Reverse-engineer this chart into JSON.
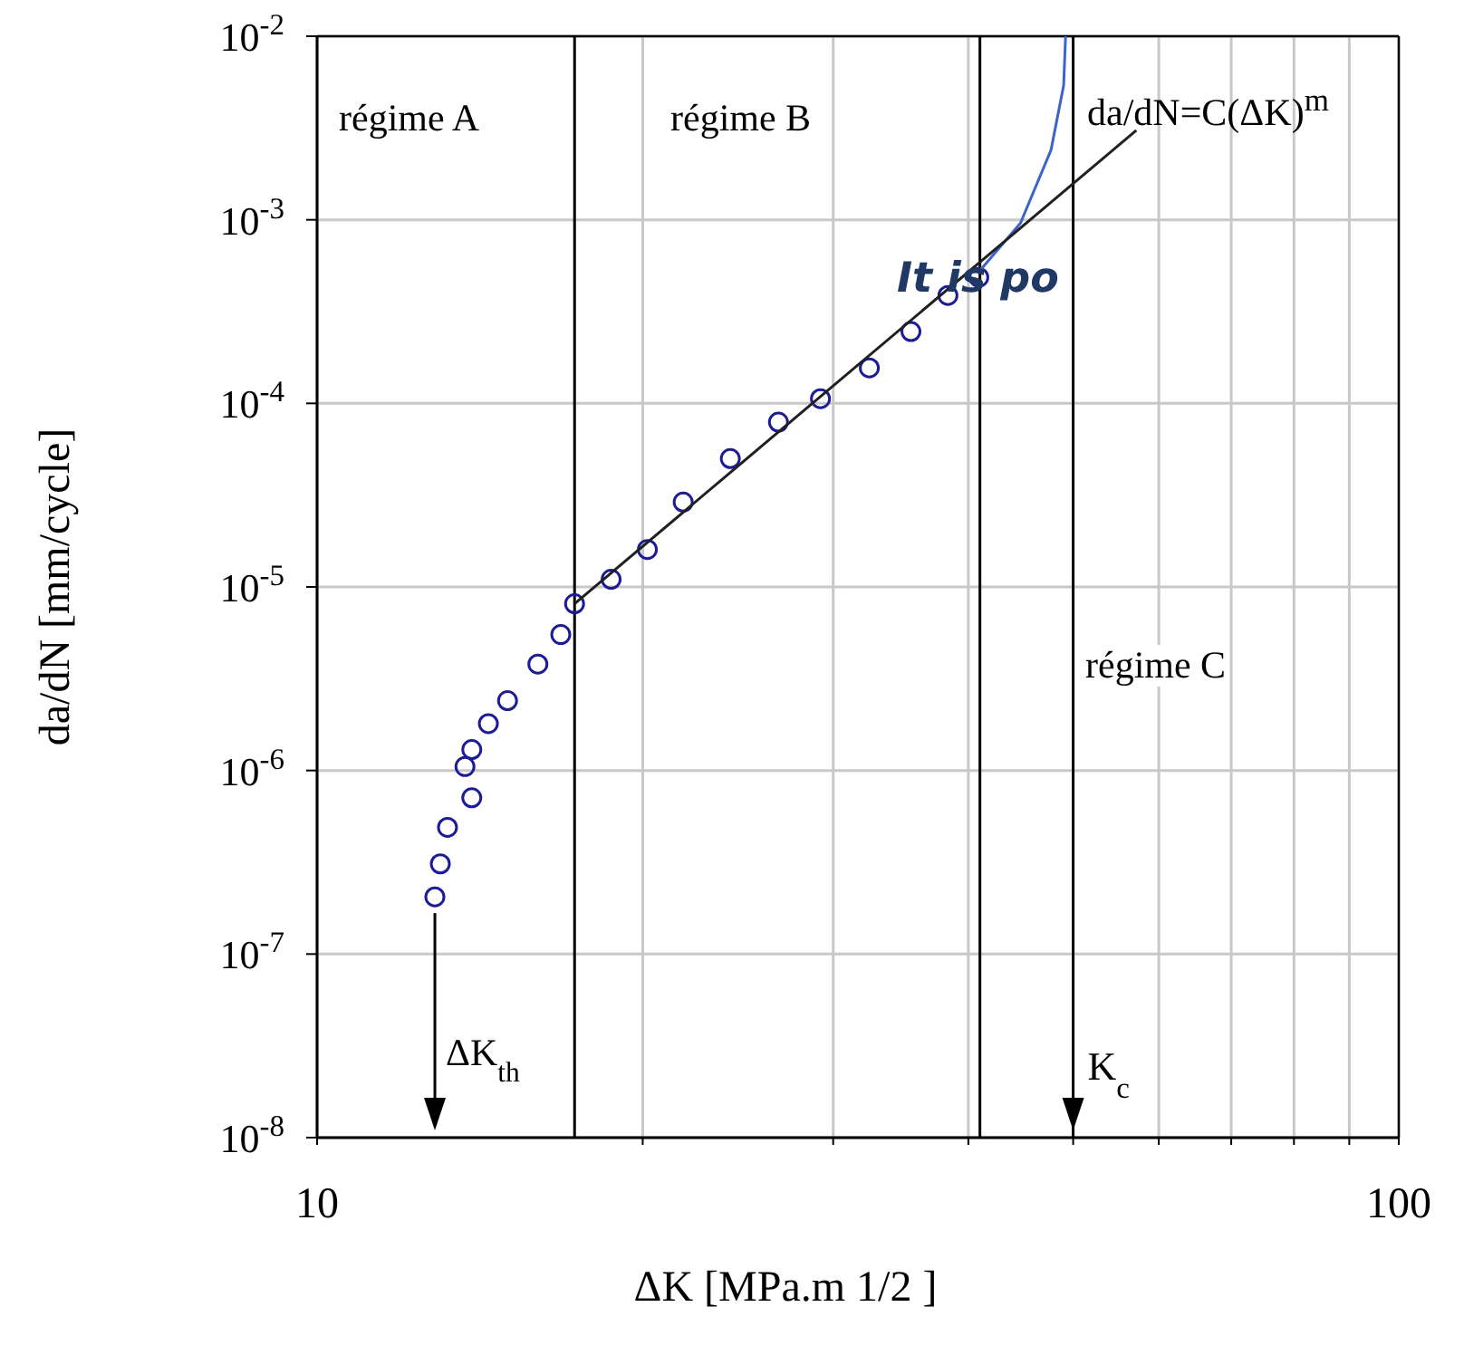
{
  "chart_data": {
    "type": "scatter",
    "xlabel": "ΔK [MPa.m 1/2 ]",
    "ylabel": "da/dN [mm/cycle]",
    "log": "xy",
    "grid": true,
    "xlim": [
      10,
      100
    ],
    "xticks": [
      10,
      {
        "value": 20,
        "label": null
      },
      {
        "value": 30,
        "label": null
      },
      {
        "value": 40,
        "label": null
      },
      {
        "value": 50,
        "label": null
      },
      {
        "value": 60,
        "label": null
      },
      {
        "value": 70,
        "label": null
      },
      {
        "value": 80,
        "label": null
      },
      {
        "value": 90,
        "label": null
      },
      100
    ],
    "ylim": [
      1e-08,
      0.01
    ],
    "yticks": [
      {
        "value": 1e-08,
        "label": "10$^{-8}$"
      },
      {
        "value": 1e-07,
        "label": "10$^{-7}$"
      },
      {
        "value": 1e-06,
        "label": "10$^{-6}$"
      },
      {
        "value": 1e-05,
        "label": "10$^{-5}$"
      },
      {
        "value": 0.0001,
        "label": "10$^{-4}$"
      },
      {
        "value": 0.001,
        "label": "10$^{-3}$"
      },
      {
        "value": 0.01,
        "label": "10$^{-2}$"
      }
    ],
    "series": [
      {
        "type": "scatter",
        "marker": "circle",
        "color": "#1c1c96",
        "x": [
          12.85,
          13.0,
          13.2,
          13.9,
          13.7,
          13.9,
          14.4,
          15.0,
          16.0,
          16.8,
          17.3,
          18.7,
          20.2,
          21.8,
          24.1,
          26.7,
          29.2,
          32.4,
          35.4,
          38.3,
          40.9
        ],
        "values": [
          2.05e-07,
          3.1e-07,
          4.9e-07,
          7.1e-07,
          1.05e-06,
          1.3e-06,
          1.8e-06,
          2.4e-06,
          3.8e-06,
          5.5e-06,
          8.1e-06,
          1.1e-05,
          1.6e-05,
          2.9e-05,
          5e-05,
          7.9e-05,
          0.000106,
          0.000156,
          0.000246,
          0.000387,
          0.000486
        ]
      },
      {
        "type": "line",
        "marker": "none",
        "color": "#3a64c8",
        "x": [
          40.9,
          44.7,
          47.7,
          49.0,
          49.2
        ],
        "values": [
          0.00052,
          0.00096,
          0.0024,
          0.0054,
          0.01
        ]
      },
      {
        "type": "line",
        "marker": "none",
        "color": "#202020",
        "x": [
          17.3,
          57.2
        ],
        "values": [
          8.1e-06,
          0.00307
        ]
      }
    ],
    "ref_lines": [
      {
        "axis": "x",
        "value": 17.3
      },
      {
        "axis": "x",
        "value": 41
      },
      {
        "axis": "x",
        "value": 50,
        "label": "K$_{c}$"
      }
    ],
    "annotations": [
      "régime A",
      "régime B",
      "régime C",
      "da/dN=C(ΔK)$^{m}$",
      {
        "text": "ΔK$_{th}$",
        "x": 12.85,
        "y": 2.05e-07
      },
      "It is po"
    ]
  }
}
